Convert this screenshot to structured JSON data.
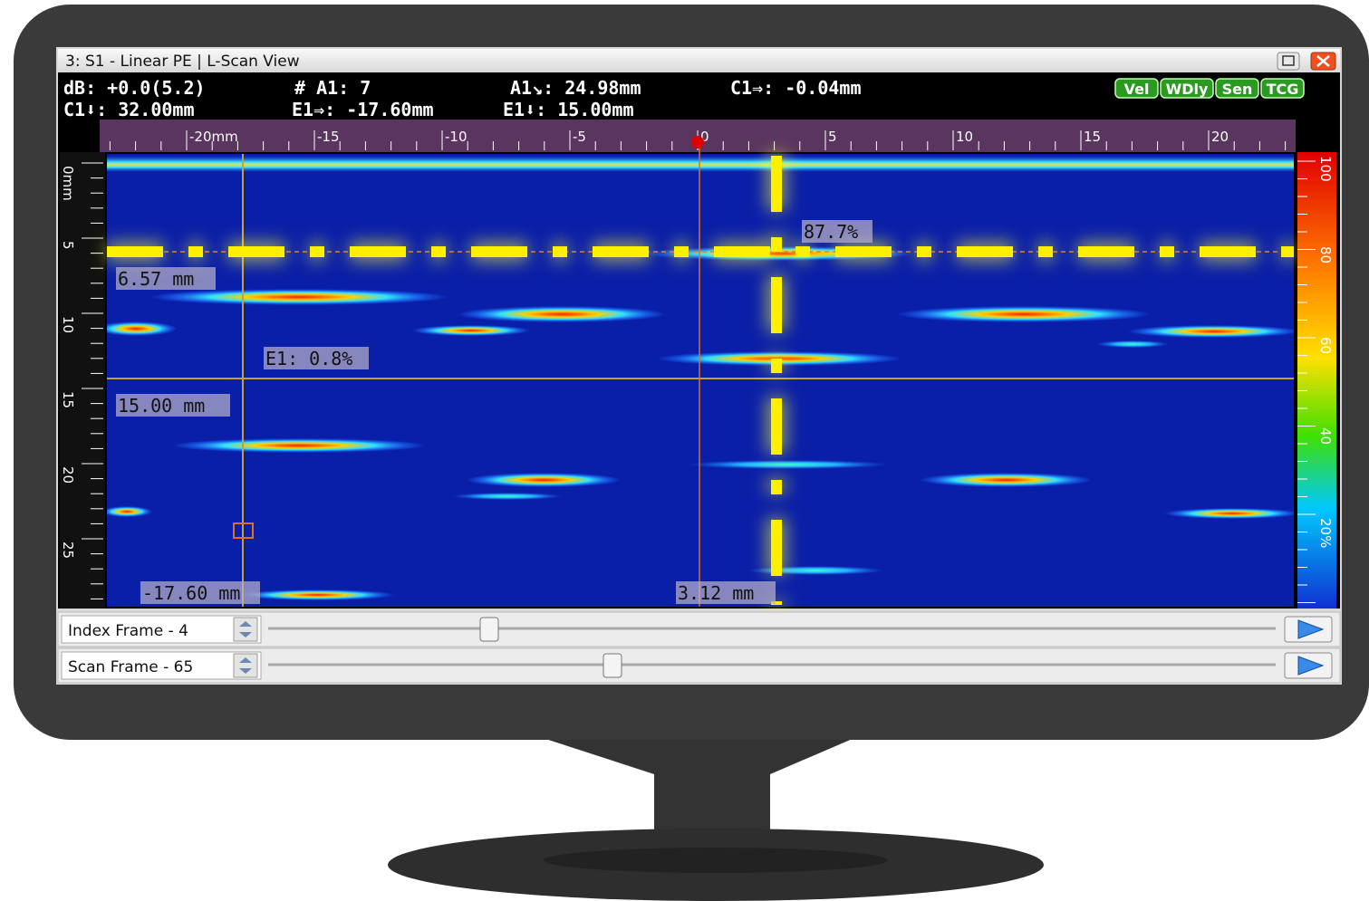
{
  "window": {
    "title": "3: S1 - Linear PE | L-Scan View"
  },
  "readouts": [
    [
      "dB: +0.0(5.2)",
      "# A1: 7",
      "A1↘: 24.98mm",
      "C1⇒: -0.04mm"
    ],
    [
      "C1⬇: 32.00mm",
      "E1⇒: -17.60mm",
      "E1⬇: 15.00mm"
    ]
  ],
  "badges": [
    "Vel",
    "WDly",
    "Sen",
    "TCG"
  ],
  "top_ruler": [
    "-20mm",
    "-15",
    "-10",
    "-5",
    "0",
    "5",
    "10",
    "15",
    "20"
  ],
  "left_ruler": [
    "0mm",
    "5",
    "10",
    "15",
    "20",
    "25"
  ],
  "color_scale": [
    "100",
    "80",
    "60",
    "40",
    "20%"
  ],
  "overlay_labels": [
    "87.7%",
    "6.57 mm",
    "E1: 0.8%",
    "15.00 mm",
    "-17.60 mm",
    "3.12 mm"
  ],
  "controls": [
    "Index Frame - 4",
    "Scan Frame - 65"
  ]
}
